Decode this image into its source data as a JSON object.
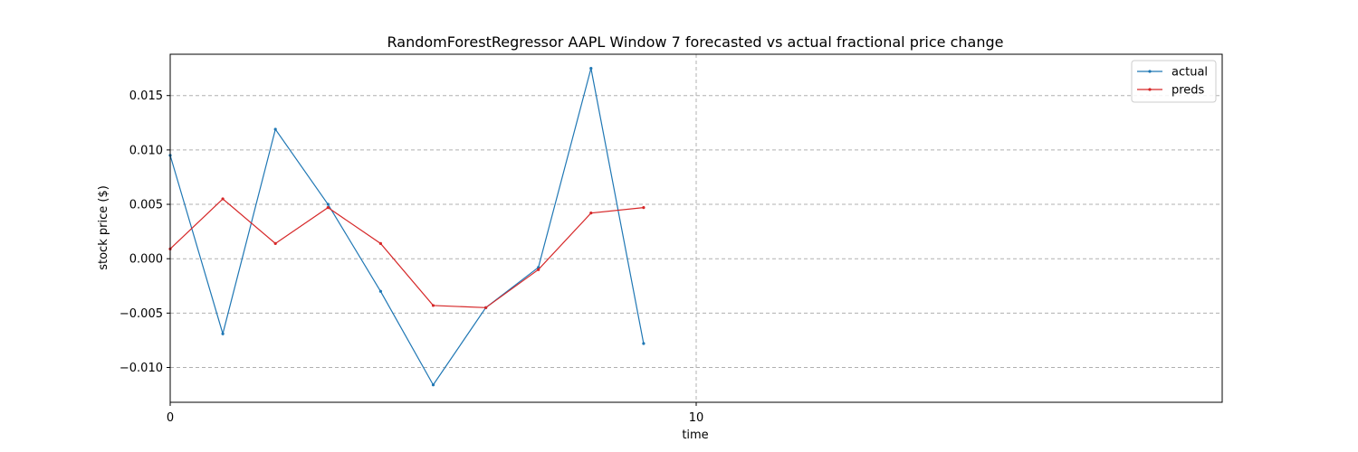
{
  "chart_data": {
    "type": "line",
    "title": "RandomForestRegressor AAPL Window 7 forecasted vs actual fractional price change",
    "xlabel": "time",
    "ylabel": "stock price ($)",
    "xlim": [
      0,
      20
    ],
    "ylim": [
      -0.0132,
      0.0188
    ],
    "x_ticks": [
      0,
      10
    ],
    "x_tick_labels": [
      "0",
      "10"
    ],
    "y_ticks": [
      -0.01,
      -0.005,
      0.0,
      0.005,
      0.01,
      0.015
    ],
    "y_tick_labels": [
      "−0.010",
      "−0.005",
      "0.000",
      "0.005",
      "0.010",
      "0.015"
    ],
    "grid": true,
    "legend_position": "top-right",
    "x": [
      0,
      1,
      2,
      3,
      4,
      5,
      6,
      7,
      8,
      9
    ],
    "series": [
      {
        "name": "actual",
        "color": "#1f77b4",
        "values": [
          0.0095,
          -0.0069,
          0.0119,
          0.005,
          -0.003,
          -0.0116,
          -0.0045,
          -0.0008,
          0.0175,
          -0.0078
        ]
      },
      {
        "name": "preds",
        "color": "#d62728",
        "values": [
          0.0009,
          0.0055,
          0.0014,
          0.0047,
          0.0014,
          -0.0043,
          -0.0045,
          -0.001,
          0.0042,
          0.0047
        ]
      }
    ]
  }
}
